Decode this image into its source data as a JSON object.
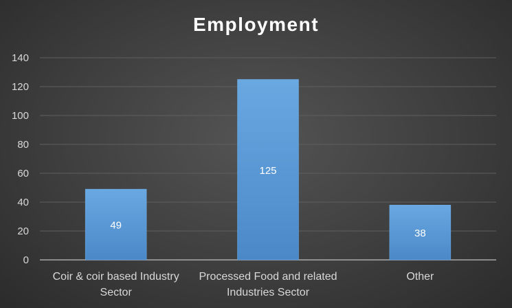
{
  "chart_data": {
    "type": "bar",
    "title": "Employment",
    "categories": [
      [
        "Coir & coir based Industry",
        "Sector"
      ],
      [
        "Processed Food and related",
        "Industries Sector"
      ],
      [
        "Other"
      ]
    ],
    "values": [
      49,
      125,
      38
    ],
    "data_labels": [
      "49",
      "125",
      "38"
    ],
    "ylim": [
      0,
      140
    ],
    "yticks": [
      0,
      20,
      40,
      60,
      80,
      100,
      120,
      140
    ],
    "ytick_labels": [
      "0",
      "20",
      "40",
      "60",
      "80",
      "100",
      "120",
      "140"
    ],
    "grid": true,
    "legend": "none",
    "bar_color": "#5b9bd5"
  }
}
